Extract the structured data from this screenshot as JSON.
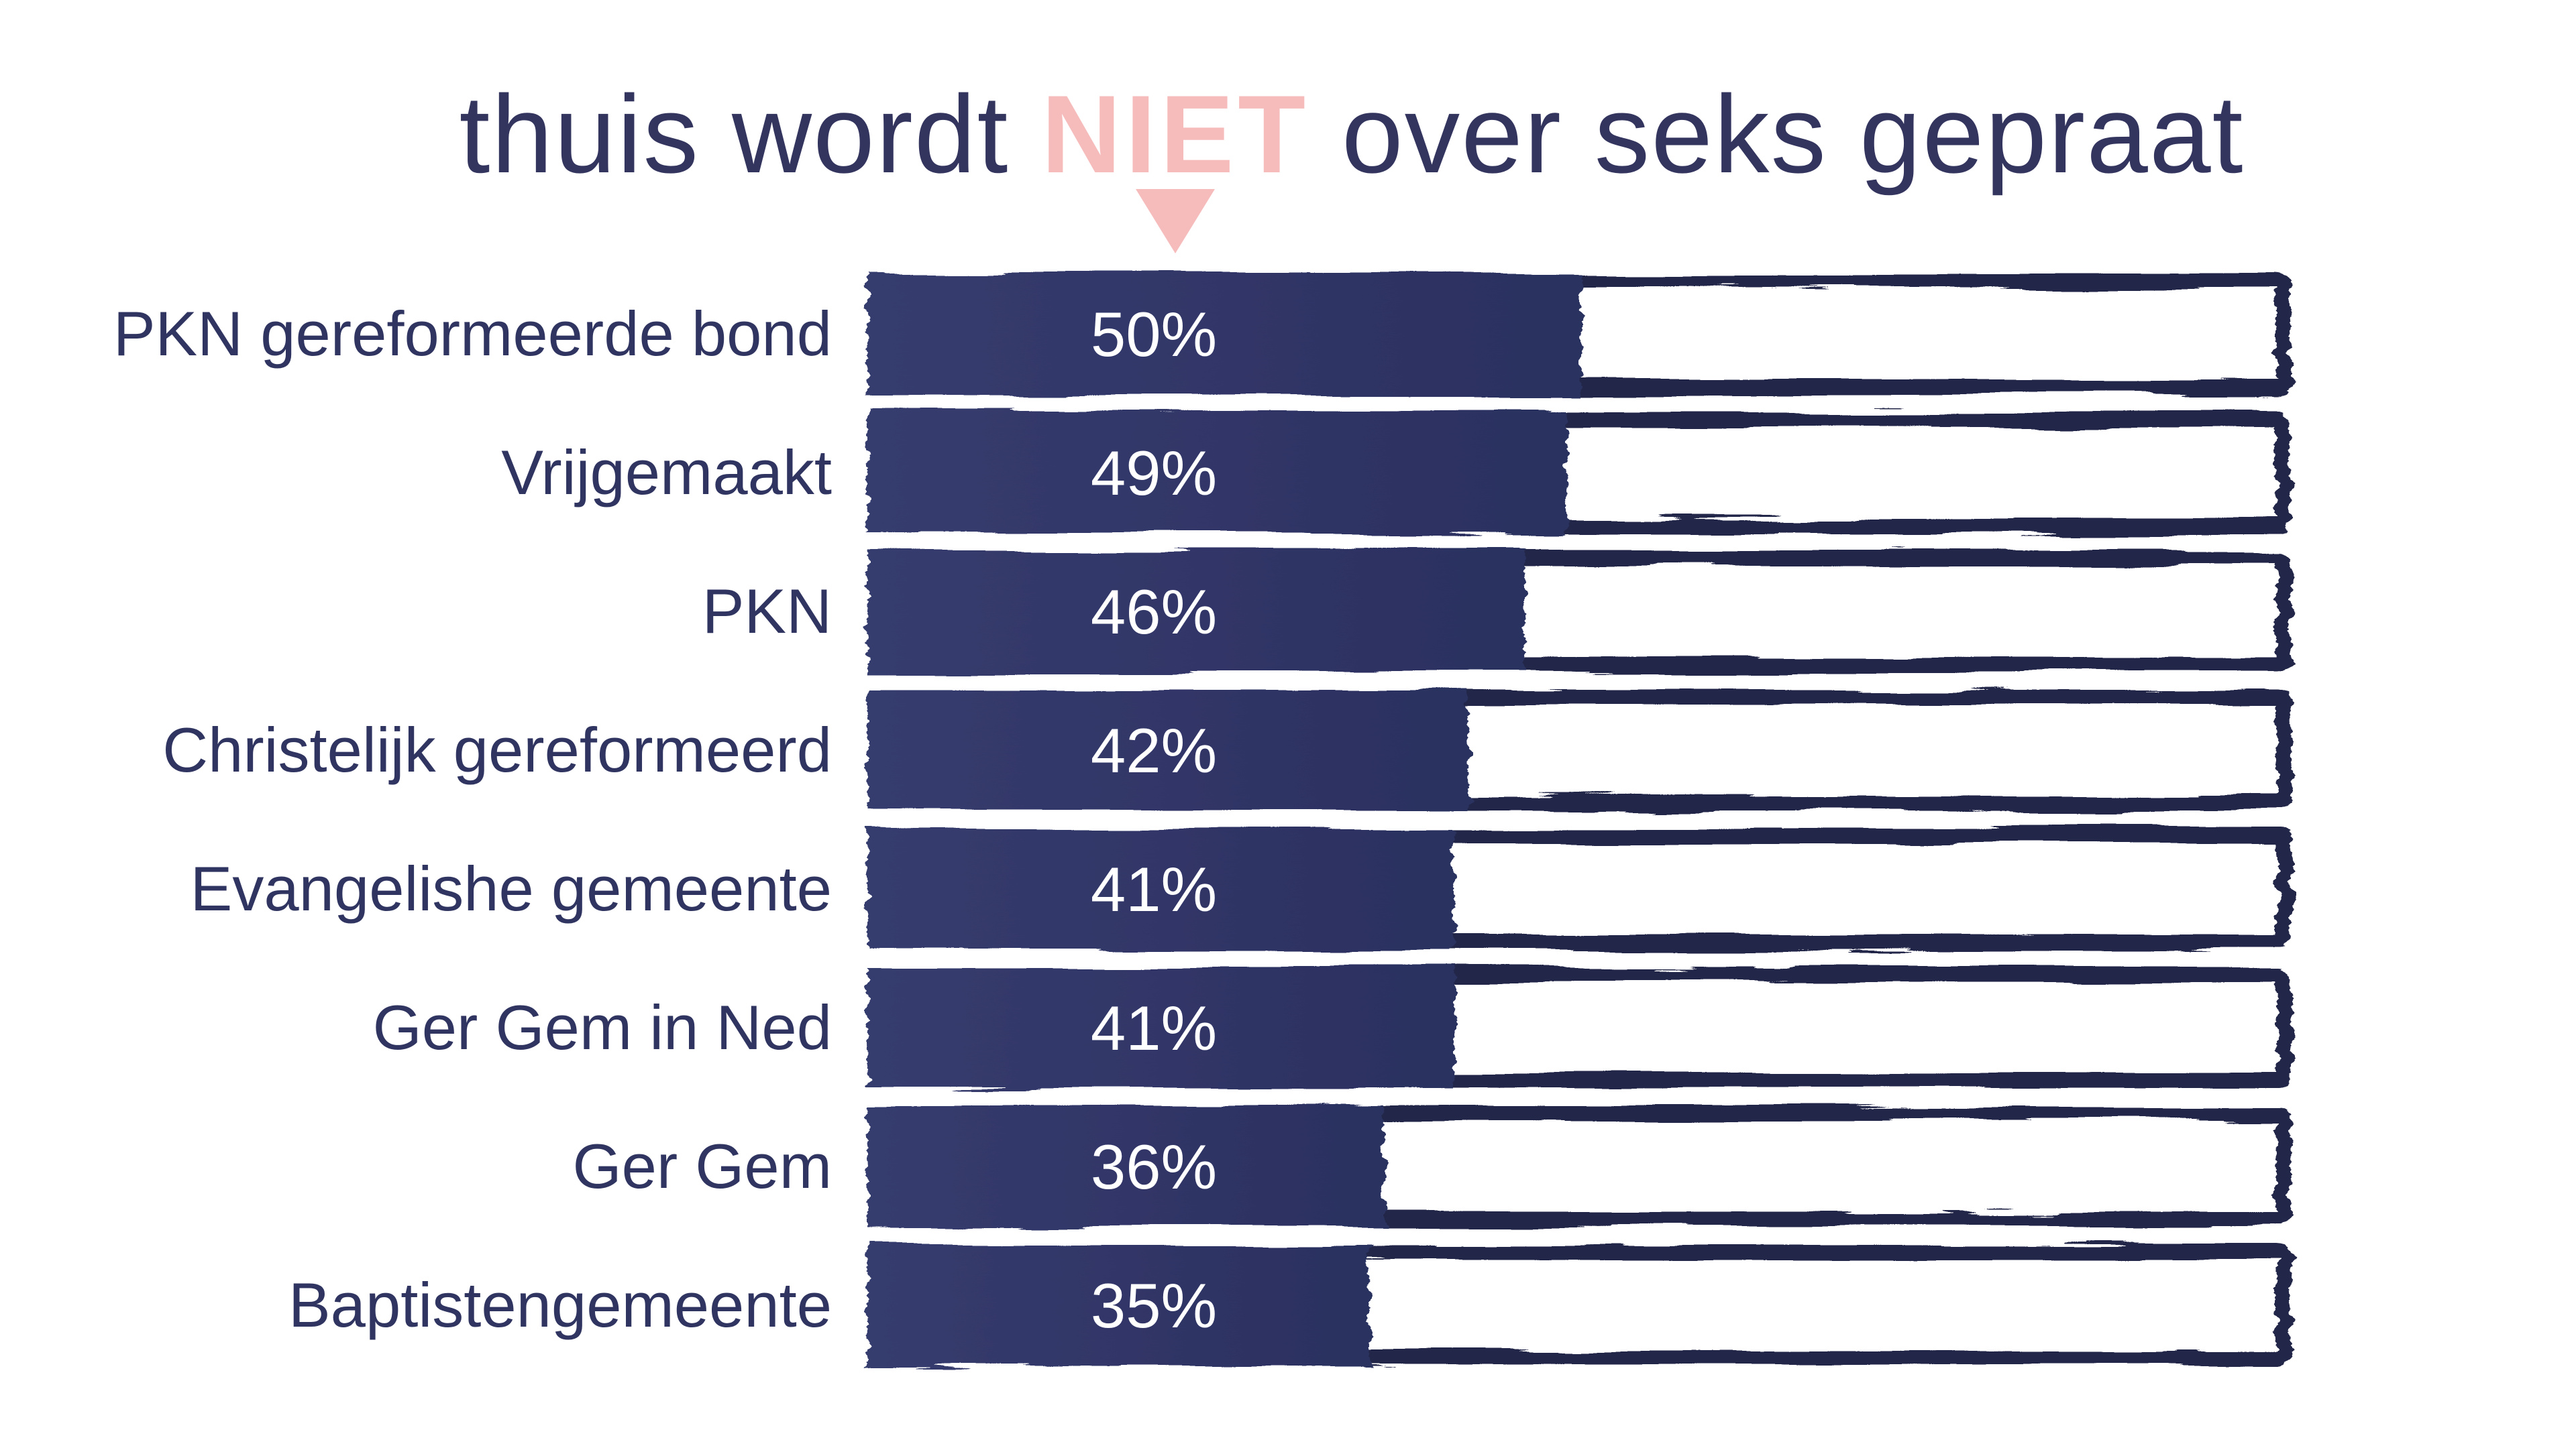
{
  "title": {
    "pre": "thuis wordt ",
    "highlight": "NIET",
    "post": " over seks gepraat",
    "full": "thuis wordt NIET over seks gepraat"
  },
  "colors": {
    "background": "#ffffff",
    "title_text": "#33355f",
    "highlight_pink": "#f6bcbc",
    "label_text": "#2f3560",
    "bar_fill_left": "#363c6e",
    "bar_fill_right": "#2b3060",
    "bar_outline": "#232749",
    "bar_value_text": "#ffffff"
  },
  "icons": {
    "arrow": "down-triangle"
  },
  "chart_data": {
    "type": "bar",
    "orientation": "horizontal",
    "style": "hand-drawn brush strokes; filled navy segment = value, remainder of 100% track outlined in white",
    "title": "thuis wordt NIET over seks gepraat",
    "categories": [
      "PKN gereformeerde bond",
      "Vrijgemaakt",
      "PKN",
      "Christelijk gereformeerd",
      "Evangelishe gemeente",
      "Ger Gem in Ned",
      "Ger Gem",
      "Baptistengemeente"
    ],
    "values": [
      50,
      49,
      46,
      42,
      41,
      41,
      36,
      35
    ],
    "value_labels": [
      "50%",
      "49%",
      "46%",
      "42%",
      "41%",
      "41%",
      "36%",
      "35%"
    ],
    "xlabel": "",
    "ylabel": "",
    "xlim": [
      0,
      100
    ],
    "grid": false,
    "legend": false
  }
}
